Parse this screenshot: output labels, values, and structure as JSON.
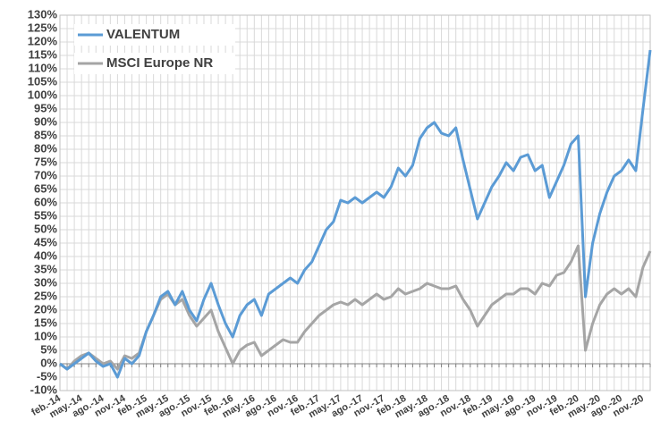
{
  "chart_data": {
    "type": "line",
    "categories": [
      "feb.-14",
      null,
      null,
      "may.-14",
      null,
      null,
      "ago.-14",
      null,
      null,
      "nov.-14",
      null,
      null,
      "feb.-15",
      null,
      null,
      "may.-15",
      null,
      null,
      "ago.-15",
      null,
      null,
      "nov.-15",
      null,
      null,
      "feb.-16",
      null,
      null,
      "may.-16",
      null,
      null,
      "ago.-16",
      null,
      null,
      "nov.-16",
      null,
      null,
      "feb.-17",
      null,
      null,
      "may.-17",
      null,
      null,
      "ago.-17",
      null,
      null,
      "nov.-17",
      null,
      null,
      "feb.-18",
      null,
      null,
      "may.-18",
      null,
      null,
      "ago.-18",
      null,
      null,
      "nov.-18",
      null,
      null,
      "feb.-19",
      null,
      null,
      "may.-19",
      null,
      null,
      "ago.-19",
      null,
      null,
      "nov.-19",
      null,
      null,
      "feb.-20",
      null,
      null,
      "may.-20",
      null,
      null,
      "ago.-20",
      null,
      null,
      "nov.-20",
      null
    ],
    "series": [
      {
        "name": "VALENTUM",
        "color": "#5b9bd5",
        "values": [
          0,
          -2,
          0,
          2,
          4,
          1,
          -1,
          0,
          -5,
          2,
          0,
          3,
          12,
          18,
          25,
          27,
          22,
          27,
          20,
          16,
          24,
          30,
          22,
          15,
          10,
          18,
          22,
          24,
          18,
          26,
          28,
          30,
          32,
          30,
          35,
          38,
          44,
          50,
          53,
          61,
          60,
          62,
          60,
          62,
          64,
          62,
          66,
          73,
          70,
          74,
          84,
          88,
          90,
          86,
          85,
          88,
          76,
          65,
          54,
          60,
          66,
          70,
          75,
          72,
          77,
          78,
          72,
          74,
          62,
          68,
          74,
          82,
          85,
          25,
          45,
          56,
          64,
          70,
          72,
          76,
          72,
          95,
          117
        ]
      },
      {
        "name": "MSCI Europe NR",
        "color": "#a5a5a5",
        "values": [
          0,
          -2,
          1,
          3,
          4,
          2,
          0,
          1,
          -2,
          3,
          2,
          4,
          12,
          18,
          24,
          26,
          22,
          24,
          18,
          14,
          17,
          20,
          12,
          6,
          0,
          5,
          7,
          8,
          3,
          5,
          7,
          9,
          8,
          8,
          12,
          15,
          18,
          20,
          22,
          23,
          22,
          24,
          22,
          24,
          26,
          24,
          25,
          28,
          26,
          27,
          28,
          30,
          29,
          28,
          28,
          29,
          24,
          20,
          14,
          18,
          22,
          24,
          26,
          26,
          28,
          28,
          26,
          30,
          29,
          33,
          34,
          38,
          44,
          5,
          15,
          22,
          26,
          28,
          26,
          28,
          25,
          36,
          42
        ]
      }
    ],
    "ylim": [
      -10,
      130
    ],
    "yticks": [
      {
        "value": -10,
        "label": "-10%"
      },
      {
        "value": -5,
        "label": "-5%"
      },
      {
        "value": 0,
        "label": "0%"
      },
      {
        "value": 5,
        "label": "5%"
      },
      {
        "value": 10,
        "label": "10%"
      },
      {
        "value": 15,
        "label": "15%"
      },
      {
        "value": 20,
        "label": "20%"
      },
      {
        "value": 25,
        "label": "25%"
      },
      {
        "value": 30,
        "label": "30%"
      },
      {
        "value": 35,
        "label": "35%"
      },
      {
        "value": 40,
        "label": "40%"
      },
      {
        "value": 45,
        "label": "45%"
      },
      {
        "value": 50,
        "label": "50%"
      },
      {
        "value": 55,
        "label": "55%"
      },
      {
        "value": 60,
        "label": "60%"
      },
      {
        "value": 65,
        "label": "65%"
      },
      {
        "value": 70,
        "label": "70%"
      },
      {
        "value": 75,
        "label": "75%"
      },
      {
        "value": 80,
        "label": "80%"
      },
      {
        "value": 85,
        "label": "85%"
      },
      {
        "value": 90,
        "label": "90%"
      },
      {
        "value": 95,
        "label": "95%"
      },
      {
        "value": 100,
        "label": "100%"
      },
      {
        "value": 105,
        "label": "105%"
      },
      {
        "value": 110,
        "label": "110%"
      },
      {
        "value": 115,
        "label": "115%"
      },
      {
        "value": 120,
        "label": "120%"
      },
      {
        "value": 125,
        "label": "125%"
      },
      {
        "value": 130,
        "label": "130%"
      }
    ],
    "grid": true,
    "legend": "top-left"
  }
}
